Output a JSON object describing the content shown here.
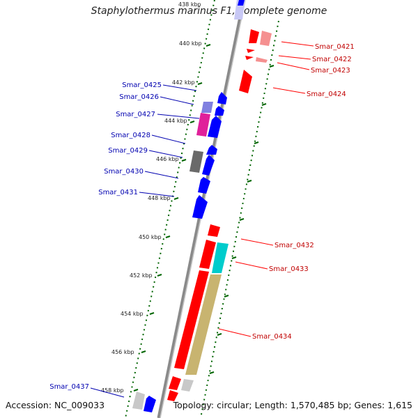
{
  "title": "Staphylothermus marinus F1, complete genome",
  "footer": {
    "accession": "Accession: NC_009033",
    "summary": "Topology: circular; Length: 1,570,485 bp; Genes: 1,615"
  },
  "colors": {
    "forward": "#ff0000",
    "reverse": "#0000ff",
    "forward_label": "#c00000",
    "reverse_label": "#0000b0",
    "tick": "#006400",
    "backbone": "#888888"
  },
  "scale_labels": [
    "438 kbp",
    "440 kbp",
    "442 kbp",
    "444 kbp",
    "446 kbp",
    "448 kbp",
    "450 kbp",
    "452 kbp",
    "454 kbp",
    "456 kbp",
    "458 kbp"
  ],
  "genes_left": [
    "Smar_0425",
    "Smar_0426",
    "Smar_0427",
    "Smar_0428",
    "Smar_0429",
    "Smar_0430",
    "Smar_0431",
    "Smar_0437"
  ],
  "genes_right": [
    "Smar_0421",
    "Smar_0422",
    "Smar_0423",
    "Smar_0424",
    "Smar_0432",
    "Smar_0433",
    "Smar_0434"
  ]
}
